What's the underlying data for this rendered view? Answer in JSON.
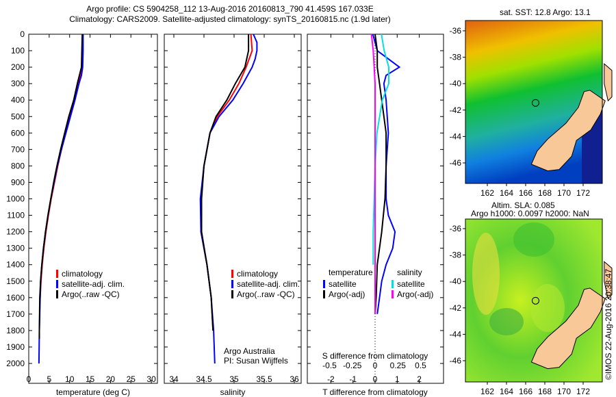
{
  "chart_data": [
    {
      "type": "line",
      "title": "Argo profile: CS 5904258_112 13-Aug-2016 20160813_790 41.459S 167.033E",
      "subtitle": "Climatology: CARS2009. Satellite-adjusted climatology: synTS_20160815.nc (1.9d later)",
      "xlabel": "temperature (deg C)",
      "xlim": [
        -2,
        32
      ],
      "ylim": [
        0,
        2100
      ],
      "xticks": [
        0,
        5,
        10,
        15,
        20,
        25,
        30
      ],
      "yticks": [
        0,
        100,
        200,
        300,
        400,
        500,
        600,
        700,
        800,
        900,
        1000,
        1100,
        1200,
        1300,
        1400,
        1500,
        1600,
        1700,
        1800,
        1900,
        2000
      ],
      "legend": [
        "climatology",
        "satellite-adj. clim.",
        "Argo(..raw -QC)"
      ],
      "series": [
        {
          "name": "climatology",
          "color": "#ff0000",
          "depth": [
            0,
            100,
            200,
            250,
            300,
            400,
            500,
            600,
            700,
            800,
            900,
            1000,
            1100,
            1200,
            1300,
            1400,
            1500,
            1600
          ],
          "values": [
            13.2,
            13.1,
            13.0,
            12.6,
            12.1,
            11.2,
            10.0,
            9.0,
            8.0,
            7.1,
            6.3,
            5.5,
            4.8,
            4.2,
            3.7,
            3.3,
            3.0,
            2.8
          ]
        },
        {
          "name": "satellite-adj. clim.",
          "color": "#0000ff",
          "depth": [
            0,
            100,
            200,
            250,
            300,
            400,
            500,
            600,
            700,
            800,
            900,
            1000,
            1100,
            1200,
            1300,
            1400,
            1500,
            1600,
            1800,
            2000
          ],
          "values": [
            13.3,
            13.3,
            13.2,
            12.9,
            12.3,
            11.3,
            10.2,
            9.1,
            8.0,
            7.0,
            6.2,
            5.4,
            4.7,
            4.1,
            3.6,
            3.2,
            2.9,
            2.8,
            2.6,
            2.5
          ]
        },
        {
          "name": "Argo(..raw -QC)",
          "color": "#000000",
          "depth": [
            0,
            100,
            200,
            250,
            300,
            400,
            500,
            600,
            700,
            800,
            900,
            1000,
            1100,
            1200,
            1300,
            1400,
            1500,
            1600,
            1800,
            1850
          ],
          "values": [
            13.1,
            13.0,
            12.9,
            12.4,
            11.9,
            11.0,
            9.8,
            8.8,
            7.8,
            6.9,
            6.1,
            5.4,
            4.7,
            4.1,
            3.6,
            3.2,
            2.9,
            2.7,
            2.6,
            2.6
          ]
        }
      ]
    },
    {
      "type": "line",
      "xlabel": "salinity",
      "xlim": [
        33.8,
        36.2
      ],
      "xticks": [
        34,
        34.5,
        35,
        35.5,
        36
      ],
      "legend": [
        "climatology",
        "satellite-adj. clim.",
        "Argo(..raw -QC)"
      ],
      "annotation": [
        "Argo Australia",
        "PI: Susan Wijffels"
      ],
      "series": [
        {
          "name": "climatology",
          "color": "#ff0000",
          "depth": [
            0,
            100,
            200,
            300,
            400,
            500,
            600,
            800,
            1000,
            1200,
            1400,
            1600,
            1800
          ],
          "values": [
            35.28,
            35.3,
            35.2,
            35.08,
            34.92,
            34.72,
            34.6,
            34.5,
            34.45,
            34.45,
            34.55,
            34.62,
            34.65
          ]
        },
        {
          "name": "satellite-adj. clim.",
          "color": "#0000ff",
          "depth": [
            0,
            50,
            100,
            150,
            200,
            300,
            400,
            500,
            600,
            800,
            1000,
            1200,
            1400,
            1600,
            1800,
            2000
          ],
          "values": [
            35.32,
            35.38,
            35.38,
            35.35,
            35.3,
            35.15,
            34.98,
            34.75,
            34.6,
            34.5,
            34.44,
            34.45,
            34.55,
            34.62,
            34.66,
            34.68
          ]
        },
        {
          "name": "Argo(..raw -QC)",
          "color": "#000000",
          "depth": [
            0,
            100,
            200,
            300,
            400,
            500,
            600,
            800,
            1000,
            1200,
            1400,
            1600,
            1800
          ],
          "values": [
            35.24,
            35.24,
            35.18,
            35.02,
            34.88,
            34.7,
            34.6,
            34.5,
            34.46,
            34.46,
            34.55,
            34.62,
            34.65
          ]
        }
      ]
    },
    {
      "type": "line",
      "xlabel": "T difference from climatology",
      "x2label": "S difference from climatology",
      "xlim": [
        -3,
        3
      ],
      "xticks": [
        -2,
        -1,
        0,
        1,
        2
      ],
      "x2ticks": [
        -0.5,
        -0.25,
        0,
        0.25,
        0.5
      ],
      "legend_titles": [
        "temperature",
        "salinity"
      ],
      "legend": [
        "satellite",
        "Argo(-adj)",
        "satellite",
        "Argo(-adj)"
      ],
      "series": [
        {
          "name": "T satellite",
          "axis": "T",
          "color": "#0000ff",
          "depth": [
            0,
            100,
            150,
            200,
            250,
            300,
            400,
            600,
            800,
            1000,
            1100,
            1200,
            1300,
            1400,
            1500,
            1600,
            1700
          ],
          "values": [
            -0.1,
            0.1,
            0.6,
            1.1,
            0.5,
            0.4,
            0.5,
            0.6,
            0.5,
            0.5,
            0.6,
            0.9,
            0.8,
            0.5,
            0.3,
            0.2,
            0.1
          ]
        },
        {
          "name": "T Argo(-adj)",
          "axis": "T",
          "color": "#000000",
          "depth": [
            0,
            100,
            200,
            300,
            400,
            500,
            600,
            800,
            1000,
            1200,
            1400,
            1600,
            1700
          ],
          "values": [
            0.0,
            0.1,
            0.1,
            0.2,
            0.3,
            0.4,
            0.5,
            0.5,
            0.45,
            0.3,
            0.1,
            0.05,
            0.0
          ]
        },
        {
          "name": "S satellite",
          "axis": "S",
          "color": "#00e0e0",
          "depth": [
            0,
            100,
            200,
            300,
            400,
            600,
            800,
            1000,
            1200,
            1400
          ],
          "values": [
            0.07,
            0.1,
            0.15,
            0.15,
            0.08,
            0.02,
            0.0,
            -0.01,
            -0.02,
            -0.02
          ]
        },
        {
          "name": "S Argo(-adj)",
          "axis": "S",
          "color": "#ff00ff",
          "depth": [
            0,
            100,
            200,
            300,
            500,
            700,
            900,
            1200,
            1500,
            1700
          ],
          "values": [
            -0.04,
            -0.02,
            -0.01,
            0.0,
            0.0,
            0.0,
            0.0,
            0.0,
            0.0,
            0.0
          ]
        }
      ]
    },
    {
      "type": "heatmap",
      "title": "sat. SST: 12.8  Argo: 13.1",
      "xticks": [
        162,
        164,
        166,
        168,
        170,
        172
      ],
      "yticks": [
        -36,
        -38,
        -40,
        -42,
        -44,
        -46
      ]
    },
    {
      "type": "heatmap",
      "title": "Altim. SLA: 0.085",
      "subtitle": "Argo h1000: 0.0097 h2000: NaN",
      "xticks": [
        162,
        164,
        166,
        168,
        170,
        172
      ],
      "yticks": [
        -36,
        -38,
        -40,
        -42,
        -44,
        -46
      ]
    }
  ],
  "float_position": {
    "lon": 167.033,
    "lat": -41.459
  },
  "credit": "©IMOS 22-Aug-2016 20:38:47"
}
